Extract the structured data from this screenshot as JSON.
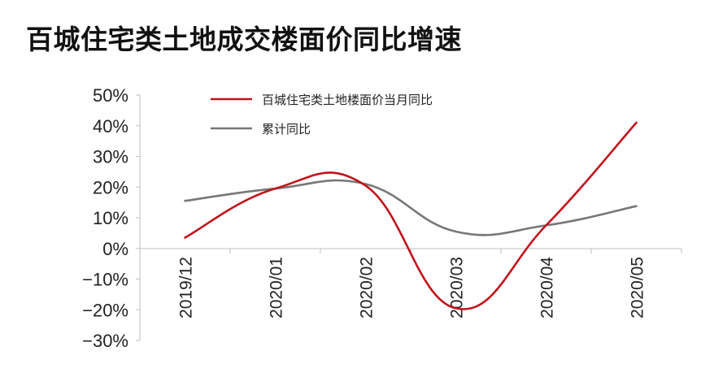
{
  "chart_data": {
    "type": "line",
    "title": "百城住宅类土地成交楼面价同比增速",
    "categories": [
      "2019/12",
      "2020/01",
      "2020/02",
      "2020/03",
      "2020/04",
      "2020/05"
    ],
    "series": [
      {
        "name": "百城住宅类土地楼面价当月同比",
        "values": [
          3.5,
          19.5,
          20.5,
          -19.5,
          7.5,
          41.0
        ],
        "color": "#c0131b"
      },
      {
        "name": "累计同比",
        "values": [
          15.5,
          19.5,
          21.0,
          5.5,
          7.5,
          13.8
        ],
        "color": "#777777"
      }
    ],
    "ylim": [
      -30,
      50
    ],
    "yticks": [
      50,
      40,
      30,
      20,
      10,
      0,
      -10,
      -20,
      -30
    ],
    "ytick_labels": [
      "50%",
      "40%",
      "30%",
      "20%",
      "10%",
      "0%",
      "−10%",
      "−20%",
      "−30%"
    ],
    "xlabel": "",
    "ylabel": "",
    "grid": false,
    "legend_position": "top"
  }
}
